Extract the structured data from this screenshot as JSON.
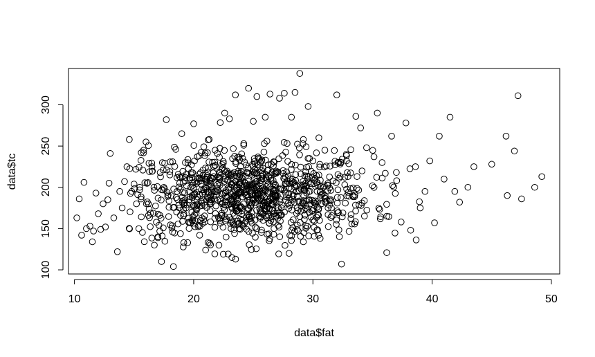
{
  "chart_data": {
    "type": "scatter",
    "title": "",
    "xlabel": "data$fat",
    "ylabel": "data$tc",
    "xlim": [
      9.5,
      50.7
    ],
    "ylim": [
      95,
      344
    ],
    "x_ticks": [
      10,
      20,
      30,
      40,
      50
    ],
    "y_ticks": [
      100,
      150,
      200,
      250,
      300
    ],
    "x_tick_labels": [
      "10",
      "20",
      "30",
      "40",
      "50"
    ],
    "y_tick_labels": [
      "100",
      "150",
      "200",
      "250",
      "300"
    ],
    "marker": "open-circle",
    "marker_color": "#000000",
    "grid": false,
    "box": true,
    "points": [
      [
        10.2,
        163
      ],
      [
        10.4,
        186
      ],
      [
        10.6,
        142
      ],
      [
        10.8,
        206
      ],
      [
        11.0,
        150
      ],
      [
        11.3,
        153
      ],
      [
        11.5,
        134
      ],
      [
        11.6,
        147
      ],
      [
        11.8,
        193
      ],
      [
        12.0,
        168
      ],
      [
        12.2,
        149
      ],
      [
        12.4,
        180
      ],
      [
        12.6,
        152
      ],
      [
        12.8,
        185
      ],
      [
        12.9,
        205
      ],
      [
        13.0,
        241
      ],
      [
        13.3,
        163
      ],
      [
        13.6,
        122
      ],
      [
        13.8,
        195
      ],
      [
        14.0,
        175
      ],
      [
        14.2,
        207
      ],
      [
        14.4,
        225
      ],
      [
        14.6,
        258
      ],
      [
        14.8,
        195
      ],
      [
        15.0,
        204
      ],
      [
        15.2,
        180
      ],
      [
        15.4,
        150
      ],
      [
        15.6,
        242
      ],
      [
        15.8,
        245
      ],
      [
        16.0,
        255
      ],
      [
        16.2,
        180
      ],
      [
        16.5,
        225
      ],
      [
        16.7,
        130
      ],
      [
        17.0,
        140
      ],
      [
        17.3,
        110
      ],
      [
        17.5,
        200
      ],
      [
        17.7,
        282
      ],
      [
        18.0,
        215
      ],
      [
        18.3,
        104
      ],
      [
        18.5,
        246
      ],
      [
        18.8,
        175
      ],
      [
        19.0,
        265
      ],
      [
        19.3,
        230
      ],
      [
        19.6,
        182
      ],
      [
        20.0,
        277
      ],
      [
        20.5,
        142
      ],
      [
        21.0,
        124
      ],
      [
        21.3,
        258
      ],
      [
        21.8,
        245
      ],
      [
        22.2,
        210
      ],
      [
        22.6,
        290
      ],
      [
        23.0,
        283
      ],
      [
        23.2,
        115
      ],
      [
        23.5,
        312
      ],
      [
        23.8,
        194
      ],
      [
        24.2,
        253
      ],
      [
        24.6,
        320
      ],
      [
        25.0,
        280
      ],
      [
        25.3,
        310
      ],
      [
        25.6,
        230
      ],
      [
        26.0,
        285
      ],
      [
        26.4,
        313
      ],
      [
        26.8,
        200
      ],
      [
        27.2,
        308
      ],
      [
        27.6,
        314
      ],
      [
        28.0,
        120
      ],
      [
        28.2,
        285
      ],
      [
        28.5,
        315
      ],
      [
        28.9,
        338
      ],
      [
        29.2,
        258
      ],
      [
        29.6,
        298
      ],
      [
        30.0,
        232
      ],
      [
        30.5,
        260
      ],
      [
        31.0,
        245
      ],
      [
        31.5,
        185
      ],
      [
        32.0,
        312
      ],
      [
        32.4,
        107
      ],
      [
        32.8,
        240
      ],
      [
        33.2,
        167
      ],
      [
        33.6,
        286
      ],
      [
        34.0,
        272
      ],
      [
        34.5,
        248
      ],
      [
        35.0,
        202
      ],
      [
        35.4,
        290
      ],
      [
        35.8,
        230
      ],
      [
        36.2,
        165
      ],
      [
        36.6,
        262
      ],
      [
        37.0,
        218
      ],
      [
        37.4,
        158
      ],
      [
        37.8,
        278
      ],
      [
        38.2,
        148
      ],
      [
        38.6,
        225
      ],
      [
        39.0,
        175
      ],
      [
        39.4,
        195
      ],
      [
        39.8,
        232
      ],
      [
        40.2,
        157
      ],
      [
        40.6,
        262
      ],
      [
        41.0,
        210
      ],
      [
        41.5,
        285
      ],
      [
        41.9,
        195
      ],
      [
        42.3,
        182
      ],
      [
        43.0,
        200
      ],
      [
        43.5,
        225
      ],
      [
        45.0,
        228
      ],
      [
        46.2,
        262
      ],
      [
        46.3,
        190
      ],
      [
        46.9,
        244
      ],
      [
        47.2,
        311
      ],
      [
        47.5,
        186
      ],
      [
        48.6,
        200
      ],
      [
        49.2,
        213
      ]
    ],
    "dense_cloud": {
      "center": [
        24.5,
        190
      ],
      "sd": [
        5.2,
        27
      ],
      "count": 1000,
      "x_range": [
        14.5,
        40.5
      ],
      "y_range": [
        112,
        300
      ]
    }
  }
}
